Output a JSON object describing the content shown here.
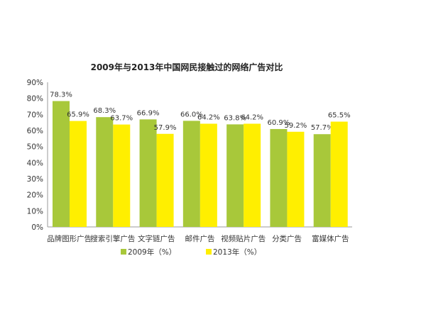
{
  "chart_data": {
    "type": "bar",
    "title": "2009年与2013年中国网民接触过的网络广告对比",
    "categories": [
      "品牌图形广告",
      "搜索引擎广告",
      "文字链广告",
      "邮件广告",
      "视频贴片广告",
      "分类广告",
      "富媒体广告"
    ],
    "series": [
      {
        "name": "2009年（%）",
        "color": "#a8c83a",
        "values": [
          78.3,
          68.3,
          66.9,
          66.0,
          63.8,
          60.9,
          57.7
        ],
        "labels": [
          "78.3%",
          "68.3%",
          "66.9%",
          "66.0%",
          "63.8%",
          "60.9%",
          "57.7%"
        ]
      },
      {
        "name": "2013年（%）",
        "color": "#ffef00",
        "values": [
          65.9,
          63.7,
          57.9,
          64.2,
          64.2,
          59.2,
          65.5
        ],
        "labels": [
          "65.9%",
          "63.7%",
          "57.9%",
          "64.2%",
          "64.2%",
          "59.2%",
          "65.5%"
        ]
      }
    ],
    "yticks": [
      "0%",
      "10%",
      "20%",
      "30%",
      "40%",
      "50%",
      "60%",
      "70%",
      "80%",
      "90%"
    ],
    "ylim": [
      0,
      90
    ],
    "xlabel": "",
    "ylabel": "",
    "grid": false,
    "legend": "bottom"
  }
}
